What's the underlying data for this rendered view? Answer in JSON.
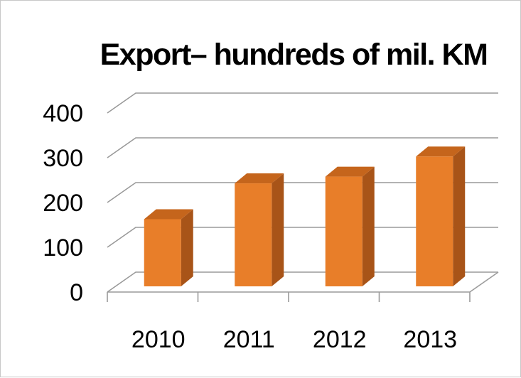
{
  "chart_data": {
    "type": "bar",
    "title": "Export– hundreds of mil. KM",
    "xlabel": "",
    "ylabel": "",
    "categories": [
      "2010",
      "2011",
      "2012",
      "2013"
    ],
    "values": [
      185,
      265,
      280,
      325
    ],
    "ylim": [
      0,
      400
    ],
    "yticks": [
      "0",
      "100",
      "200",
      "300",
      "400"
    ],
    "grid": true,
    "legend": "none",
    "three_d": true,
    "colors": {
      "bar_front": "#E87E29",
      "bar_side": "#A85418",
      "bar_top": "#C5651C",
      "gridline": "#9A9A9A"
    }
  }
}
